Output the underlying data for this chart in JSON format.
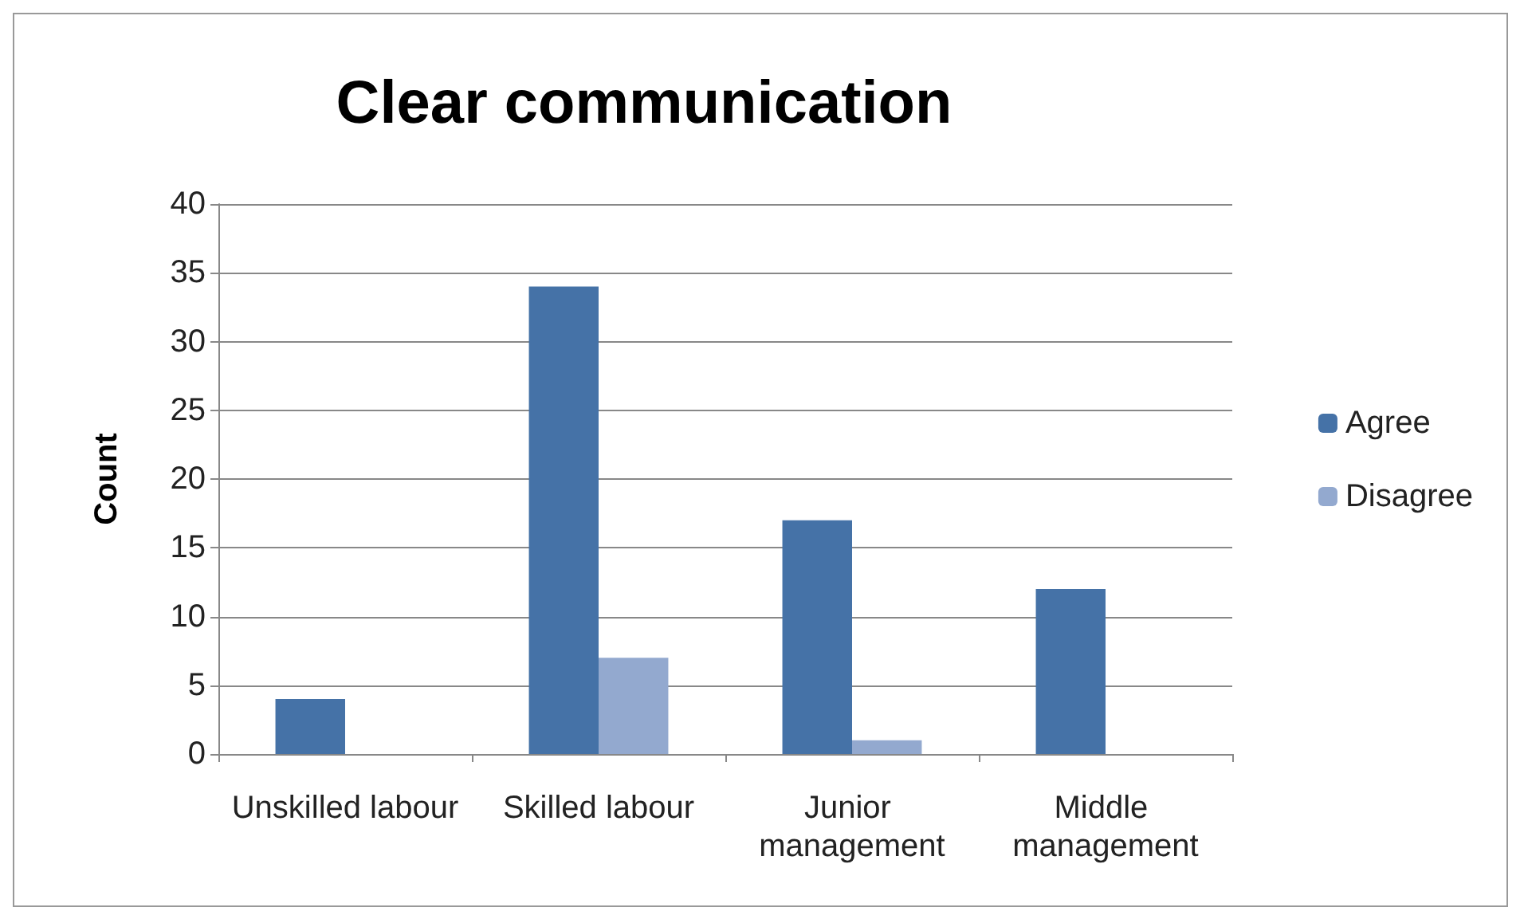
{
  "chart_data": {
    "type": "bar",
    "title": "Clear communication",
    "ylabel": "Count",
    "categories": [
      "Unskilled labour",
      "Skilled labour",
      "Junior management",
      "Middle management"
    ],
    "series": [
      {
        "name": "Agree",
        "color": "#4572a7",
        "values": [
          4,
          34,
          17,
          12
        ]
      },
      {
        "name": "Disagree",
        "color": "#93a9cf",
        "values": [
          0,
          7,
          1,
          0
        ]
      }
    ],
    "ylim": [
      0,
      40
    ],
    "yticks": [
      0,
      5,
      10,
      15,
      20,
      25,
      30,
      35,
      40
    ],
    "grid": "y",
    "legend": "right"
  }
}
